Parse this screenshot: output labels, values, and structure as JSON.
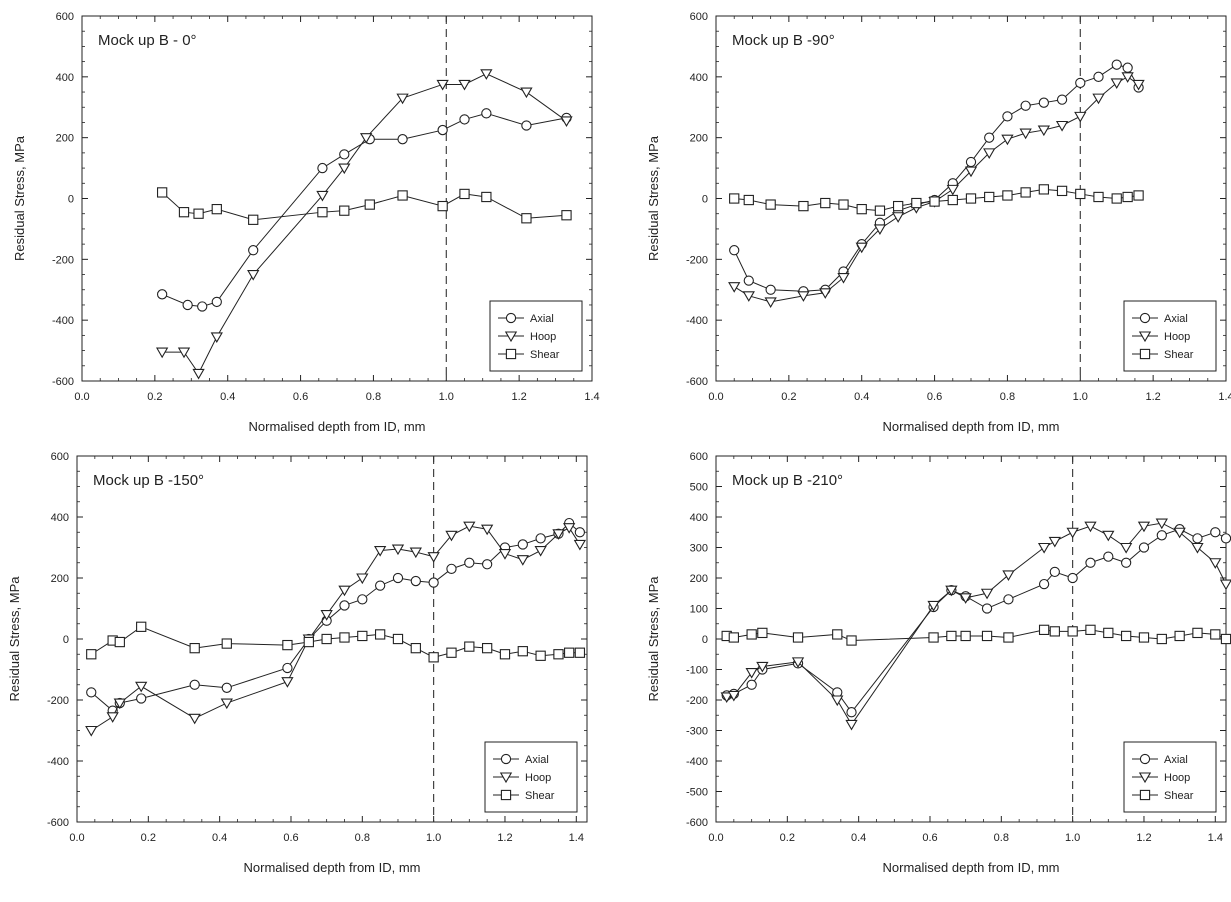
{
  "chart_data": [
    {
      "type": "line",
      "title": "Mock up B - 0°",
      "xlabel": "Normalised depth from ID, mm",
      "ylabel": "Residual Stress, MPa",
      "xlim": [
        0.0,
        1.4
      ],
      "ylim": [
        -600,
        600
      ],
      "xticks": [
        0.0,
        0.2,
        0.4,
        0.6,
        0.8,
        1.0,
        1.2,
        1.4
      ],
      "yticks": [
        -600,
        -400,
        -200,
        0,
        200,
        400,
        600
      ],
      "ref_line_x": 1.0,
      "grid": false,
      "legend_position": "bottom-right",
      "series": [
        {
          "name": "Axial",
          "marker": "circle",
          "x": [
            0.22,
            0.29,
            0.33,
            0.37,
            0.47,
            0.66,
            0.72,
            0.79,
            0.88,
            0.99,
            1.05,
            1.11,
            1.22,
            1.33
          ],
          "y": [
            -315,
            -350,
            -355,
            -340,
            -170,
            100,
            145,
            195,
            195,
            225,
            260,
            280,
            240,
            265
          ]
        },
        {
          "name": "Hoop",
          "marker": "triangle",
          "x": [
            0.22,
            0.28,
            0.32,
            0.37,
            0.47,
            0.66,
            0.72,
            0.78,
            0.88,
            0.99,
            1.05,
            1.11,
            1.22,
            1.33
          ],
          "y": [
            -505,
            -505,
            -575,
            -455,
            -250,
            10,
            100,
            200,
            330,
            375,
            375,
            410,
            350,
            255
          ]
        },
        {
          "name": "Shear",
          "marker": "square",
          "x": [
            0.22,
            0.28,
            0.32,
            0.37,
            0.47,
            0.66,
            0.72,
            0.79,
            0.88,
            0.99,
            1.05,
            1.11,
            1.22,
            1.33
          ],
          "y": [
            20,
            -45,
            -50,
            -35,
            -70,
            -45,
            -40,
            -20,
            10,
            -25,
            15,
            5,
            -65,
            -55
          ]
        }
      ]
    },
    {
      "type": "line",
      "title": "Mock up B -90°",
      "xlabel": "Normalised depth from ID, mm",
      "ylabel": "Residual Stress, MPa",
      "xlim": [
        0.0,
        1.4
      ],
      "ylim": [
        -600,
        600
      ],
      "xticks": [
        0.0,
        0.2,
        0.4,
        0.6,
        0.8,
        1.0,
        1.2,
        1.4
      ],
      "yticks": [
        -600,
        -400,
        -200,
        0,
        200,
        400,
        600
      ],
      "ref_line_x": 1.0,
      "grid": false,
      "legend_position": "bottom-right",
      "series": [
        {
          "name": "Axial",
          "marker": "circle",
          "x": [
            0.05,
            0.09,
            0.15,
            0.24,
            0.3,
            0.35,
            0.4,
            0.45,
            0.5,
            0.55,
            0.6,
            0.65,
            0.7,
            0.75,
            0.8,
            0.85,
            0.9,
            0.95,
            1.0,
            1.05,
            1.1,
            1.13,
            1.16
          ],
          "y": [
            -170,
            -270,
            -300,
            -305,
            -300,
            -240,
            -150,
            -80,
            -40,
            -20,
            -5,
            50,
            120,
            200,
            270,
            305,
            315,
            325,
            380,
            400,
            440,
            430,
            365
          ]
        },
        {
          "name": "Hoop",
          "marker": "triangle",
          "x": [
            0.05,
            0.09,
            0.15,
            0.24,
            0.3,
            0.35,
            0.4,
            0.45,
            0.5,
            0.55,
            0.6,
            0.65,
            0.7,
            0.75,
            0.8,
            0.85,
            0.9,
            0.95,
            1.0,
            1.05,
            1.1,
            1.13,
            1.16
          ],
          "y": [
            -290,
            -320,
            -340,
            -320,
            -310,
            -260,
            -160,
            -100,
            -60,
            -30,
            -10,
            30,
            90,
            150,
            195,
            215,
            225,
            240,
            270,
            330,
            380,
            400,
            375
          ]
        },
        {
          "name": "Shear",
          "marker": "square",
          "x": [
            0.05,
            0.09,
            0.15,
            0.24,
            0.3,
            0.35,
            0.4,
            0.45,
            0.5,
            0.55,
            0.6,
            0.65,
            0.7,
            0.75,
            0.8,
            0.85,
            0.9,
            0.95,
            1.0,
            1.05,
            1.1,
            1.13,
            1.16
          ],
          "y": [
            0,
            -5,
            -20,
            -25,
            -15,
            -20,
            -35,
            -40,
            -25,
            -15,
            -10,
            -5,
            0,
            5,
            10,
            20,
            30,
            25,
            15,
            5,
            0,
            5,
            10
          ]
        }
      ]
    },
    {
      "type": "line",
      "title": "Mock up B -150°",
      "xlabel": "Normalised depth from ID, mm",
      "ylabel": "Residual Stress, MPa",
      "xlim": [
        0.0,
        1.43
      ],
      "ylim": [
        -600,
        600
      ],
      "xticks": [
        0.0,
        0.2,
        0.4,
        0.6,
        0.8,
        1.0,
        1.2,
        1.4
      ],
      "yticks": [
        -600,
        -400,
        -200,
        0,
        200,
        400,
        600
      ],
      "ref_line_x": 1.0,
      "grid": false,
      "legend_position": "bottom-right",
      "series": [
        {
          "name": "Axial",
          "marker": "circle",
          "x": [
            0.04,
            0.1,
            0.12,
            0.18,
            0.33,
            0.42,
            0.59,
            0.65,
            0.7,
            0.75,
            0.8,
            0.85,
            0.9,
            0.95,
            1.0,
            1.05,
            1.1,
            1.15,
            1.2,
            1.25,
            1.3,
            1.35,
            1.38,
            1.41
          ],
          "y": [
            -175,
            -235,
            -210,
            -195,
            -150,
            -160,
            -95,
            0,
            60,
            110,
            130,
            175,
            200,
            190,
            185,
            230,
            250,
            245,
            300,
            310,
            330,
            345,
            380,
            350
          ]
        },
        {
          "name": "Hoop",
          "marker": "triangle",
          "x": [
            0.04,
            0.1,
            0.12,
            0.18,
            0.33,
            0.42,
            0.59,
            0.65,
            0.7,
            0.75,
            0.8,
            0.85,
            0.9,
            0.95,
            1.0,
            1.05,
            1.1,
            1.15,
            1.2,
            1.25,
            1.3,
            1.35,
            1.38,
            1.41
          ],
          "y": [
            -300,
            -255,
            -210,
            -155,
            -260,
            -210,
            -140,
            0,
            80,
            160,
            200,
            290,
            295,
            285,
            270,
            340,
            370,
            360,
            280,
            260,
            290,
            345,
            365,
            310
          ]
        },
        {
          "name": "Shear",
          "marker": "square",
          "x": [
            0.04,
            0.1,
            0.12,
            0.18,
            0.33,
            0.42,
            0.59,
            0.65,
            0.7,
            0.75,
            0.8,
            0.85,
            0.9,
            0.95,
            1.0,
            1.05,
            1.1,
            1.15,
            1.2,
            1.25,
            1.3,
            1.35,
            1.38,
            1.41
          ],
          "y": [
            -50,
            -5,
            -10,
            40,
            -30,
            -15,
            -20,
            -10,
            0,
            5,
            10,
            15,
            0,
            -30,
            -60,
            -45,
            -25,
            -30,
            -50,
            -40,
            -55,
            -50,
            -45,
            -45
          ]
        }
      ]
    },
    {
      "type": "line",
      "title": "Mock up B -210°",
      "xlabel": "Normalised depth from ID, mm",
      "ylabel": "Residual Stress, MPa",
      "xlim": [
        0.0,
        1.43
      ],
      "ylim": [
        -600,
        600
      ],
      "xticks": [
        0.0,
        0.2,
        0.4,
        0.6,
        0.8,
        1.0,
        1.2,
        1.4
      ],
      "yticks": [
        -600,
        -500,
        -400,
        -300,
        -200,
        -100,
        0,
        100,
        200,
        300,
        400,
        500,
        600
      ],
      "ref_line_x": 1.0,
      "grid": false,
      "legend_position": "bottom-right",
      "series": [
        {
          "name": "Axial",
          "marker": "circle",
          "x": [
            0.03,
            0.05,
            0.1,
            0.13,
            0.23,
            0.34,
            0.38,
            0.61,
            0.66,
            0.7,
            0.76,
            0.82,
            0.92,
            0.95,
            1.0,
            1.05,
            1.1,
            1.15,
            1.2,
            1.25,
            1.3,
            1.35,
            1.4,
            1.43
          ],
          "y": [
            -185,
            -180,
            -150,
            -100,
            -80,
            -175,
            -240,
            105,
            160,
            140,
            100,
            130,
            180,
            220,
            200,
            250,
            270,
            250,
            300,
            340,
            360,
            330,
            350,
            330
          ]
        },
        {
          "name": "Hoop",
          "marker": "triangle",
          "x": [
            0.03,
            0.05,
            0.1,
            0.13,
            0.23,
            0.34,
            0.38,
            0.61,
            0.66,
            0.7,
            0.76,
            0.82,
            0.92,
            0.95,
            1.0,
            1.05,
            1.1,
            1.15,
            1.2,
            1.25,
            1.3,
            1.35,
            1.4,
            1.43
          ],
          "y": [
            -190,
            -185,
            -110,
            -90,
            -75,
            -200,
            -280,
            110,
            160,
            135,
            150,
            210,
            300,
            320,
            350,
            370,
            340,
            300,
            370,
            380,
            350,
            300,
            250,
            180
          ]
        },
        {
          "name": "Shear",
          "marker": "square",
          "x": [
            0.03,
            0.05,
            0.1,
            0.13,
            0.23,
            0.34,
            0.38,
            0.61,
            0.66,
            0.7,
            0.76,
            0.82,
            0.92,
            0.95,
            1.0,
            1.05,
            1.1,
            1.15,
            1.2,
            1.25,
            1.3,
            1.35,
            1.4,
            1.43
          ],
          "y": [
            10,
            5,
            15,
            20,
            5,
            15,
            -5,
            5,
            10,
            10,
            10,
            5,
            30,
            25,
            25,
            30,
            20,
            10,
            5,
            0,
            10,
            20,
            15,
            0
          ]
        }
      ]
    }
  ]
}
